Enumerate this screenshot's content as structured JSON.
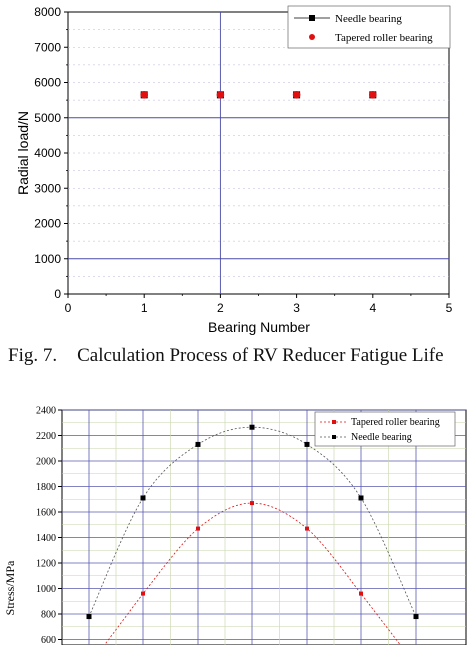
{
  "caption": {
    "number": "Fig. 7.",
    "text": "Calculation Process of RV Reducer Fatigue Life"
  },
  "chart_data": [
    {
      "type": "scatter",
      "ylabel": "Radial load/N",
      "xlabel": "Bearing Number",
      "xlim": [
        0,
        5
      ],
      "ylim": [
        0,
        8000
      ],
      "x_ticks": [
        "0",
        "1",
        "2",
        "3",
        "4",
        "5"
      ],
      "y_ticks": [
        "0",
        "1000",
        "2000",
        "3000",
        "4000",
        "5000",
        "6000",
        "7000",
        "8000"
      ],
      "grid": "horizontal lines at 1000 and 5000, vertical line at x=2, dashed minor lines",
      "legend_position": "top-right",
      "series": [
        {
          "name": "Needle bearing",
          "color": "#000000",
          "marker": "square",
          "x": [
            1,
            2,
            3,
            4
          ],
          "values": [
            5650,
            5650,
            5650,
            5650
          ]
        },
        {
          "name": "Tapered roller bearing",
          "color": "#e01010",
          "marker": "circle",
          "x": [
            1,
            2,
            3,
            4
          ],
          "values": [
            5650,
            5650,
            5650,
            5650
          ]
        }
      ]
    },
    {
      "type": "line",
      "ylabel": "Stress/MPa",
      "ylim": [
        600,
        2400
      ],
      "y_ticks": [
        "600",
        "800",
        "1000",
        "1200",
        "1400",
        "1600",
        "1800",
        "2000",
        "2200",
        "2400"
      ],
      "grid": "on",
      "legend_position": "top-right",
      "x": [
        1,
        2,
        3,
        4,
        5,
        6,
        7
      ],
      "series": [
        {
          "name": "Tapered roller bearing",
          "color": "#e01010",
          "values": [
            null,
            960,
            1470,
            1670,
            1470,
            960,
            null
          ]
        },
        {
          "name": "Needle bearing",
          "color": "#000000",
          "values": [
            780,
            1710,
            2130,
            2265,
            2130,
            1710,
            780
          ]
        }
      ]
    }
  ]
}
